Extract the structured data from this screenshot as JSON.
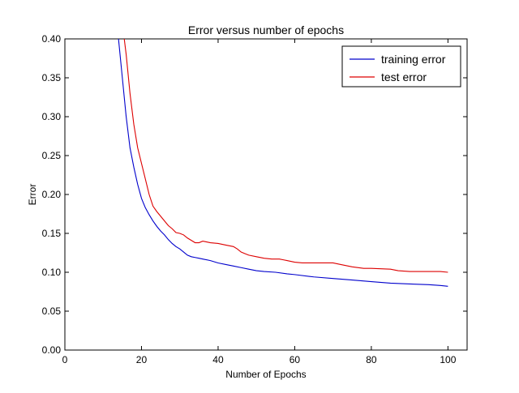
{
  "chart_data": {
    "type": "line",
    "title": "Error versus number of epochs",
    "xlabel": "Number of Epochs",
    "ylabel": "Error",
    "xlim": [
      0,
      105
    ],
    "ylim": [
      0.0,
      0.4
    ],
    "xticks": [
      0,
      20,
      40,
      60,
      80,
      100
    ],
    "yticks": [
      0.0,
      0.05,
      0.1,
      0.15,
      0.2,
      0.25,
      0.3,
      0.35,
      0.4
    ],
    "xtick_labels": [
      "0",
      "20",
      "40",
      "60",
      "80",
      "100"
    ],
    "ytick_labels": [
      "0.00",
      "0.05",
      "0.10",
      "0.15",
      "0.20",
      "0.25",
      "0.30",
      "0.35",
      "0.40"
    ],
    "grid": false,
    "legend_position": "top-right",
    "series": [
      {
        "name": "training error",
        "color": "#0000cc",
        "x": [
          13,
          14,
          15,
          16,
          17,
          18,
          19,
          20,
          21,
          22,
          23,
          24,
          25,
          26,
          27,
          28,
          29,
          30,
          31,
          32,
          33,
          34,
          35,
          36,
          38,
          40,
          42,
          44,
          46,
          48,
          50,
          52,
          55,
          58,
          60,
          65,
          70,
          75,
          80,
          85,
          90,
          95,
          98,
          100
        ],
        "y": [
          0.45,
          0.4,
          0.35,
          0.3,
          0.26,
          0.235,
          0.213,
          0.195,
          0.183,
          0.174,
          0.166,
          0.159,
          0.153,
          0.148,
          0.142,
          0.137,
          0.133,
          0.13,
          0.126,
          0.122,
          0.12,
          0.119,
          0.118,
          0.117,
          0.115,
          0.112,
          0.11,
          0.108,
          0.106,
          0.104,
          0.102,
          0.101,
          0.1,
          0.098,
          0.097,
          0.094,
          0.092,
          0.09,
          0.088,
          0.086,
          0.085,
          0.084,
          0.083,
          0.082
        ]
      },
      {
        "name": "test error",
        "color": "#dd0000",
        "x": [
          14,
          15,
          16,
          17,
          18,
          19,
          20,
          21,
          22,
          23,
          24,
          25,
          26,
          27,
          28,
          29,
          30,
          31,
          32,
          33,
          34,
          35,
          36,
          37,
          38,
          40,
          42,
          44,
          45,
          46,
          47,
          48,
          50,
          52,
          54,
          56,
          57,
          58,
          60,
          62,
          65,
          70,
          72,
          75,
          78,
          80,
          85,
          87,
          90,
          95,
          98,
          100
        ],
        "y": [
          0.46,
          0.42,
          0.38,
          0.33,
          0.29,
          0.26,
          0.24,
          0.22,
          0.2,
          0.185,
          0.178,
          0.172,
          0.166,
          0.16,
          0.156,
          0.151,
          0.15,
          0.148,
          0.144,
          0.141,
          0.138,
          0.138,
          0.14,
          0.139,
          0.138,
          0.137,
          0.135,
          0.133,
          0.13,
          0.126,
          0.124,
          0.122,
          0.12,
          0.118,
          0.117,
          0.117,
          0.116,
          0.115,
          0.113,
          0.112,
          0.112,
          0.112,
          0.11,
          0.107,
          0.105,
          0.105,
          0.104,
          0.102,
          0.101,
          0.101,
          0.101,
          0.1
        ]
      }
    ]
  }
}
